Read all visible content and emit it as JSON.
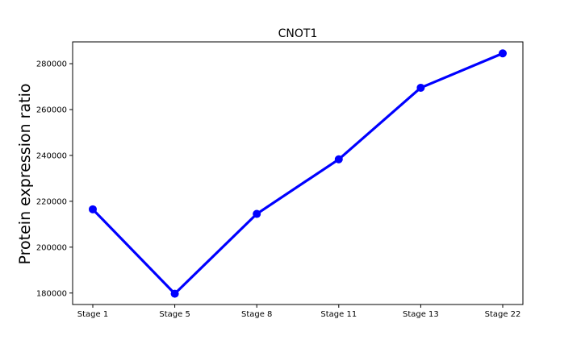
{
  "chart_data": {
    "type": "line",
    "title": "CNOT1",
    "xlabel": "",
    "ylabel": "Protein expression ratio",
    "categories": [
      "Stage 1",
      "Stage 5",
      "Stage 8",
      "Stage 11",
      "Stage 13",
      "Stage 22"
    ],
    "series": [
      {
        "values": [
          216500,
          179700,
          214500,
          238300,
          269500,
          284500
        ],
        "color": "#0000ff"
      }
    ],
    "ylim": [
      175000,
      289500
    ],
    "yticks": [
      "180000",
      "200000",
      "220000",
      "240000",
      "260000",
      "280000"
    ],
    "grid": false,
    "legend": "none"
  }
}
